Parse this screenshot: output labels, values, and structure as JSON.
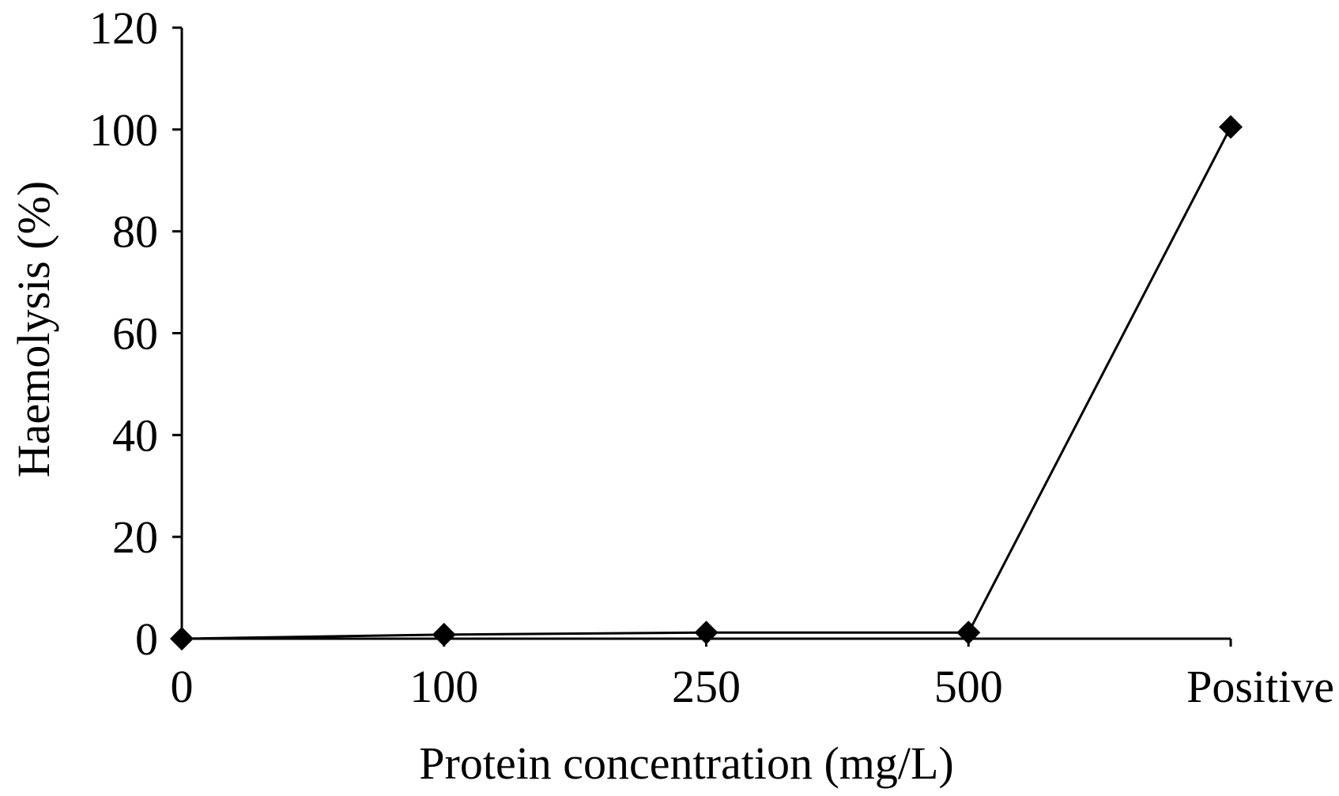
{
  "chart_data": {
    "type": "line",
    "title": "",
    "xlabel": "Protein concentration (mg/L)",
    "ylabel": "Haemolysis (%)",
    "categories": [
      "0",
      "100",
      "250",
      "500",
      "Positive"
    ],
    "series": [
      {
        "values": [
          0,
          0.8,
          1.2,
          1.2,
          100.5
        ],
        "marker": "diamond"
      }
    ],
    "ylim": [
      0,
      120
    ],
    "yticks": [
      0,
      20,
      40,
      60,
      80,
      100,
      120
    ],
    "grid": false,
    "legend": "none",
    "colors": {
      "series": "#000000",
      "axis": "#000000",
      "background": "#ffffff"
    }
  }
}
